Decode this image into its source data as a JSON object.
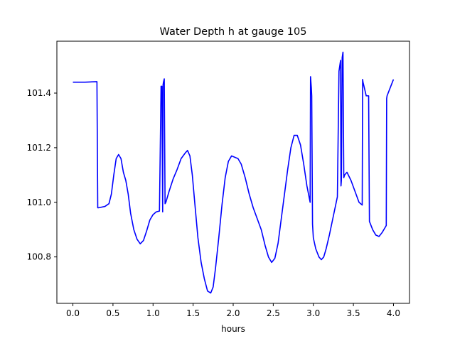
{
  "chart_data": {
    "type": "line",
    "title": "Water Depth h at gauge 105",
    "xlabel": "hours",
    "ylabel": "",
    "xlim": [
      -0.2,
      4.2
    ],
    "ylim": [
      100.63,
      101.59
    ],
    "xticks": [
      0.0,
      0.5,
      1.0,
      1.5,
      2.0,
      2.5,
      3.0,
      3.5,
      4.0
    ],
    "xtick_labels": [
      "0.0",
      "0.5",
      "1.0",
      "1.5",
      "2.0",
      "2.5",
      "3.0",
      "3.5",
      "4.0"
    ],
    "yticks": [
      100.8,
      101.0,
      101.2,
      101.4
    ],
    "ytick_labels": [
      "100.8",
      "101.0",
      "101.2",
      "101.4"
    ],
    "grid": false,
    "line_color": "#0000ff",
    "series": [
      {
        "x": [
          0.0,
          0.15,
          0.3,
          0.31,
          0.32,
          0.4,
          0.45,
          0.48,
          0.51,
          0.54,
          0.57,
          0.6,
          0.63,
          0.66,
          0.69,
          0.72,
          0.76,
          0.8,
          0.84,
          0.88,
          0.92,
          0.96,
          1.0,
          1.04,
          1.08,
          1.1,
          1.11,
          1.12,
          1.125,
          1.13,
          1.14,
          1.15,
          1.16,
          1.2,
          1.25,
          1.3,
          1.35,
          1.4,
          1.43,
          1.46,
          1.49,
          1.52,
          1.56,
          1.6,
          1.64,
          1.68,
          1.72,
          1.75,
          1.78,
          1.82,
          1.86,
          1.9,
          1.94,
          1.98,
          2.02,
          2.06,
          2.1,
          2.15,
          2.2,
          2.25,
          2.3,
          2.35,
          2.4,
          2.44,
          2.48,
          2.52,
          2.56,
          2.6,
          2.64,
          2.68,
          2.72,
          2.76,
          2.8,
          2.84,
          2.88,
          2.92,
          2.96,
          2.965,
          2.975,
          2.98,
          2.99,
          3.0,
          3.03,
          3.07,
          3.1,
          3.13,
          3.16,
          3.2,
          3.25,
          3.3,
          3.32,
          3.325,
          3.33,
          3.34,
          3.345,
          3.35,
          3.36,
          3.365,
          3.37,
          3.38,
          3.39,
          3.42,
          3.47,
          3.52,
          3.57,
          3.61,
          3.615,
          3.62,
          3.66,
          3.69,
          3.7,
          3.74,
          3.78,
          3.82,
          3.86,
          3.9,
          3.91,
          3.915,
          3.92,
          3.96,
          4.0
        ],
        "y": [
          101.44,
          101.44,
          101.442,
          100.98,
          100.98,
          100.985,
          100.995,
          101.03,
          101.1,
          101.16,
          101.175,
          101.16,
          101.11,
          101.08,
          101.03,
          100.96,
          100.9,
          100.865,
          100.848,
          100.86,
          100.895,
          100.935,
          100.955,
          100.965,
          100.968,
          101.425,
          101.425,
          100.965,
          101.43,
          101.44,
          101.452,
          100.995,
          101.0,
          101.04,
          101.085,
          101.12,
          101.16,
          101.18,
          101.19,
          101.17,
          101.1,
          101.0,
          100.87,
          100.78,
          100.72,
          100.675,
          100.668,
          100.69,
          100.76,
          100.87,
          100.99,
          101.09,
          101.15,
          101.17,
          101.165,
          101.16,
          101.14,
          101.09,
          101.03,
          100.98,
          100.94,
          100.9,
          100.84,
          100.8,
          100.78,
          100.795,
          100.85,
          100.94,
          101.03,
          101.12,
          101.2,
          101.245,
          101.245,
          101.21,
          101.14,
          101.06,
          101.0,
          101.46,
          101.42,
          101.39,
          100.92,
          100.87,
          100.83,
          100.8,
          100.79,
          100.8,
          100.83,
          100.88,
          100.95,
          101.02,
          101.48,
          101.49,
          101.5,
          101.52,
          101.06,
          101.08,
          101.53,
          101.54,
          101.55,
          101.09,
          101.1,
          101.11,
          101.08,
          101.04,
          101.0,
          100.99,
          101.45,
          101.44,
          101.39,
          101.39,
          100.93,
          100.9,
          100.88,
          100.875,
          100.89,
          100.91,
          100.915,
          101.38,
          101.39,
          101.42,
          101.45
        ]
      }
    ]
  }
}
